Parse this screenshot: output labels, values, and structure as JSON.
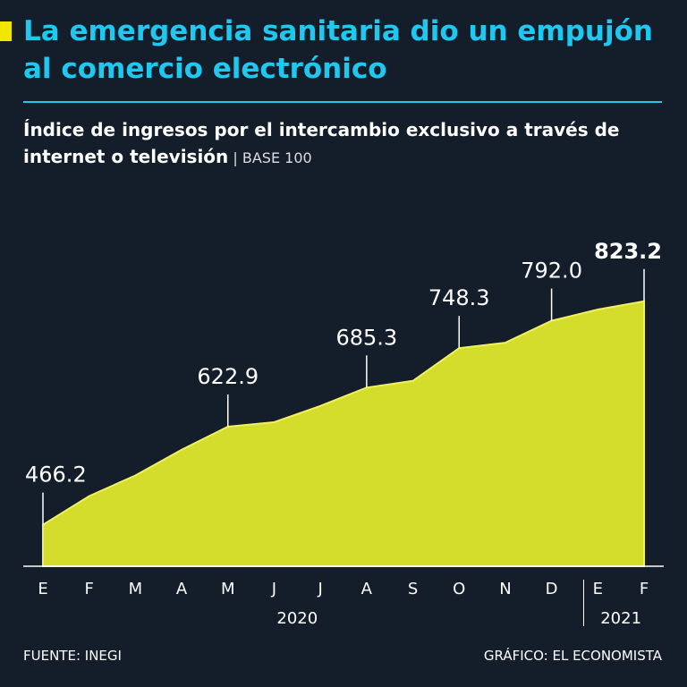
{
  "chart_data": {
    "type": "area",
    "title": "La emergencia sanitaria dio un empujón al comercio electrónico",
    "subtitle": "Índice de ingresos por el intercambio exclusivo a través de internet o televisión",
    "unit_note": "BASE 100",
    "categories": [
      "E",
      "F",
      "M",
      "A",
      "M",
      "J",
      "J",
      "A",
      "S",
      "O",
      "N",
      "D",
      "E",
      "F"
    ],
    "years": [
      "2020",
      "2021"
    ],
    "values": [
      466.2,
      512,
      545,
      586,
      622.9,
      630,
      656,
      685.3,
      696,
      748.3,
      757,
      792.0,
      810,
      823.2
    ],
    "value_labels": [
      "466.2",
      null,
      null,
      null,
      "622.9",
      null,
      null,
      "685.3",
      null,
      "748.3",
      null,
      "792.0",
      null,
      "823.2"
    ],
    "color": "#d4dc2c",
    "ylim": [
      400,
      850
    ],
    "source": "FUENTE: INEGI",
    "credit": "GRÁFICO: EL ECONOMISTA"
  }
}
